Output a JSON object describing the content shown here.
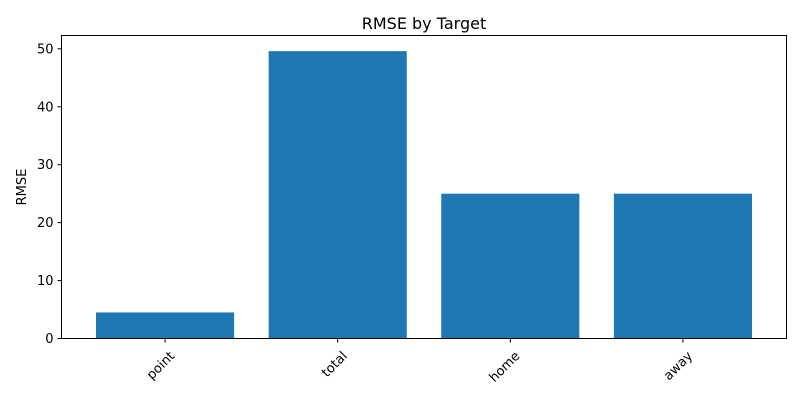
{
  "chart_data": {
    "type": "bar",
    "title": "RMSE by Target",
    "xlabel": "",
    "ylabel": "RMSE",
    "categories": [
      "point",
      "total",
      "home",
      "away"
    ],
    "values": [
      4.5,
      49.6,
      25.0,
      25.0
    ],
    "ylim": [
      0,
      52.3
    ],
    "yticks": [
      0,
      10,
      20,
      30,
      40,
      50
    ],
    "bar_color": "#1f77b4",
    "grid": false,
    "x_tick_rotation_deg": 45
  }
}
